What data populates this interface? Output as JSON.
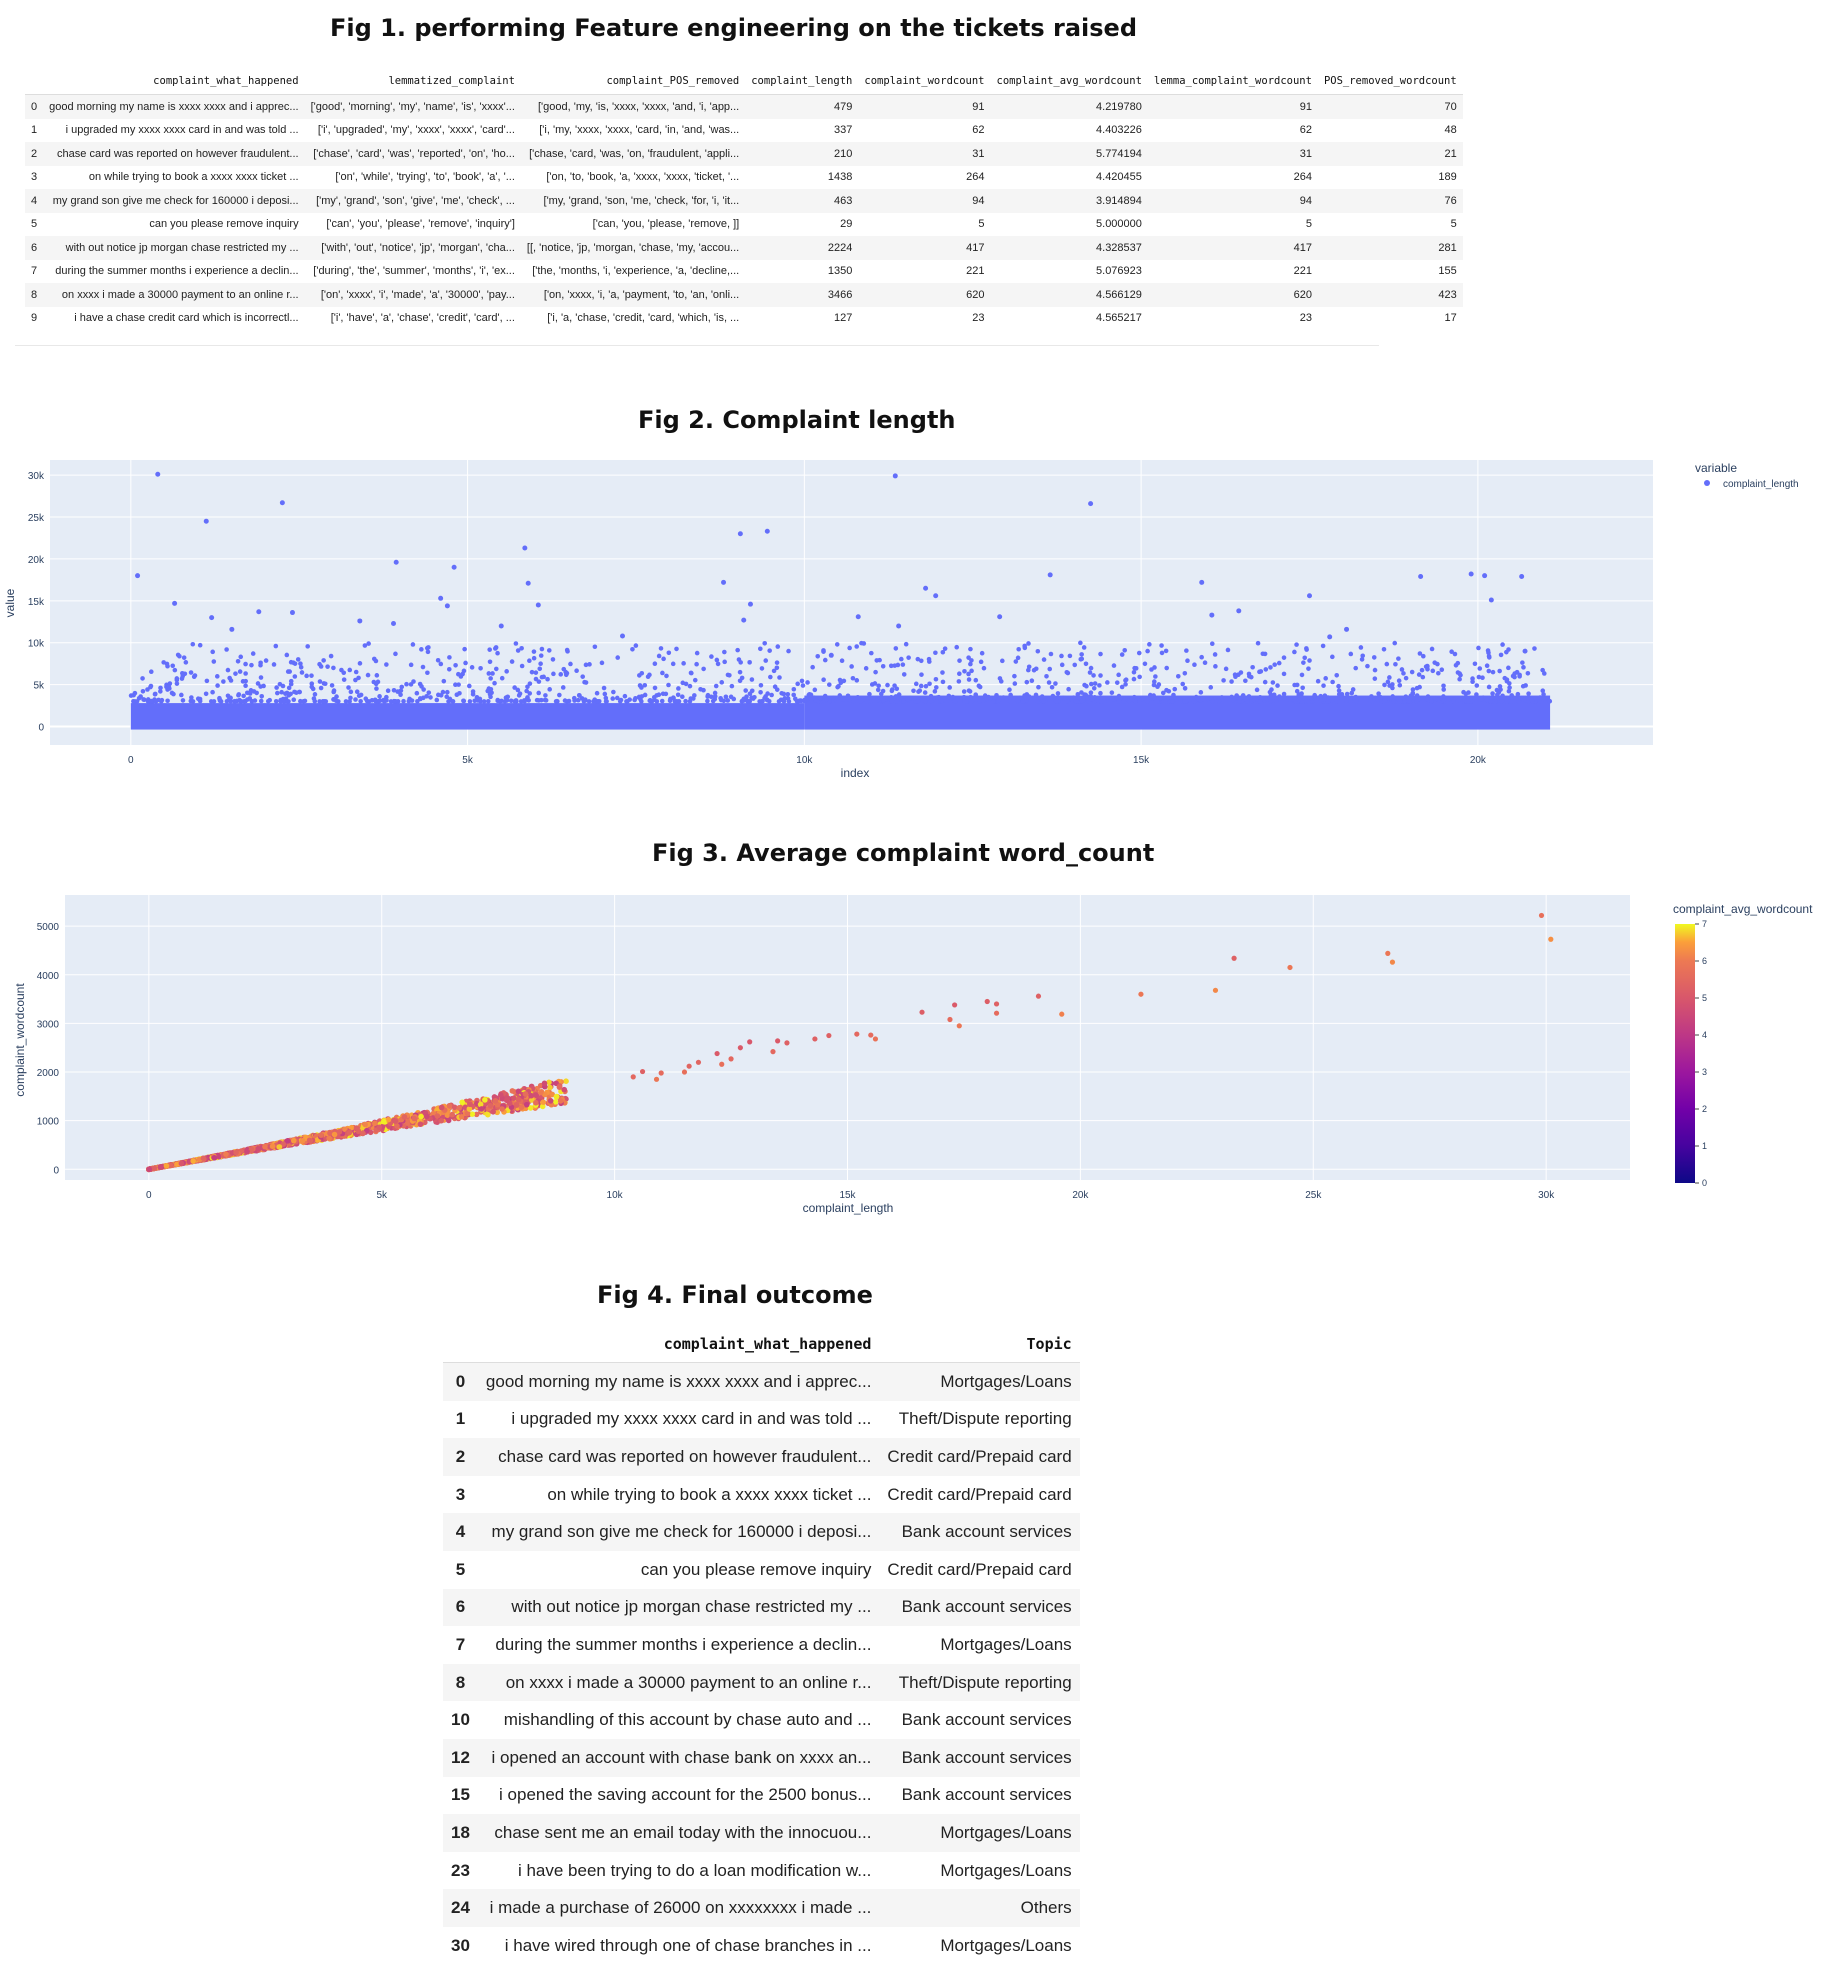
{
  "fig1": {
    "title": "Fig 1. performing Feature engineering on the tickets raised",
    "columns": [
      "",
      "complaint_what_happened",
      "lemmatized_complaint",
      "complaint_POS_removed",
      "complaint_length",
      "complaint_wordcount",
      "complaint_avg_wordcount",
      "lemma_complaint_wordcount",
      "POS_removed_wordcount"
    ],
    "rows": [
      [
        "0",
        "good morning my name is xxxx xxxx and i apprec...",
        "['good', 'morning', 'my', 'name', 'is', 'xxxx'...",
        "['good, 'my, 'is, 'xxxx, 'xxxx, 'and, 'i, 'app...",
        "479",
        "91",
        "4.219780",
        "91",
        "70"
      ],
      [
        "1",
        "i upgraded my xxxx xxxx card in and was told ...",
        "['i', 'upgraded', 'my', 'xxxx', 'xxxx', 'card'...",
        "['i, 'my, 'xxxx, 'xxxx, 'card, 'in, 'and, 'was...",
        "337",
        "62",
        "4.403226",
        "62",
        "48"
      ],
      [
        "2",
        "chase card was reported on however fraudulent...",
        "['chase', 'card', 'was', 'reported', 'on', 'ho...",
        "['chase, 'card, 'was, 'on, 'fraudulent, 'appli...",
        "210",
        "31",
        "5.774194",
        "31",
        "21"
      ],
      [
        "3",
        "on while trying to book a xxxx xxxx ticket ...",
        "['on', 'while', 'trying', 'to', 'book', 'a', '...",
        "['on, 'to, 'book, 'a, 'xxxx, 'xxxx, 'ticket, '...",
        "1438",
        "264",
        "4.420455",
        "264",
        "189"
      ],
      [
        "4",
        "my grand son give me check for 160000 i deposi...",
        "['my', 'grand', 'son', 'give', 'me', 'check', ...",
        "['my, 'grand, 'son, 'me, 'check, 'for, 'i, 'it...",
        "463",
        "94",
        "3.914894",
        "94",
        "76"
      ],
      [
        "5",
        "can you please remove inquiry",
        "['can', 'you', 'please', 'remove', 'inquiry']",
        "['can, 'you, 'please, 'remove, ]]",
        "29",
        "5",
        "5.000000",
        "5",
        "5"
      ],
      [
        "6",
        "with out notice jp morgan chase restricted my ...",
        "['with', 'out', 'notice', 'jp', 'morgan', 'cha...",
        "[[, 'notice, 'jp, 'morgan, 'chase, 'my, 'accou...",
        "2224",
        "417",
        "4.328537",
        "417",
        "281"
      ],
      [
        "7",
        "during the summer months i experience a declin...",
        "['during', 'the', 'summer', 'months', 'i', 'ex...",
        "['the, 'months, 'i, 'experience, 'a, 'decline,...",
        "1350",
        "221",
        "5.076923",
        "221",
        "155"
      ],
      [
        "8",
        "on xxxx i made a 30000 payment to an online r...",
        "['on', 'xxxx', 'i', 'made', 'a', '30000', 'pay...",
        "['on, 'xxxx, 'i, 'a, 'payment, 'to, 'an, 'onli...",
        "3466",
        "620",
        "4.566129",
        "620",
        "423"
      ],
      [
        "9",
        "i have a chase credit card which is incorrectl...",
        "['i', 'have', 'a', 'chase', 'credit', 'card', ...",
        "['i, 'a, 'chase, 'credit, 'card, 'which, 'is, ...",
        "127",
        "23",
        "4.565217",
        "23",
        "17"
      ]
    ]
  },
  "fig2": {
    "title": "Fig 2.  Complaint length",
    "xlabel": "index",
    "ylabel": "value",
    "legend_title": "variable",
    "legend_item": "complaint_length",
    "marker_color": "#636efa",
    "x_ticks": [
      {
        "v": 0,
        "label": "0"
      },
      {
        "v": 5000,
        "label": "5k"
      },
      {
        "v": 10000,
        "label": "10k"
      },
      {
        "v": 15000,
        "label": "15k"
      },
      {
        "v": 20000,
        "label": "20k"
      }
    ],
    "y_ticks": [
      {
        "v": 0,
        "label": "0"
      },
      {
        "v": 5000,
        "label": "5k"
      },
      {
        "v": 10000,
        "label": "10k"
      },
      {
        "v": 15000,
        "label": "15k"
      },
      {
        "v": 20000,
        "label": "20k"
      },
      {
        "v": 25000,
        "label": "25k"
      },
      {
        "v": 30000,
        "label": "30k"
      }
    ]
  },
  "fig3": {
    "title": "Fig 3. Average complaint word_count",
    "xlabel": "complaint_length",
    "ylabel": "complaint_wordcount",
    "colorbar_title": "complaint_avg_wordcount",
    "colorbar_ticks": [
      "0",
      "1",
      "2",
      "3",
      "4",
      "5",
      "6",
      "7"
    ],
    "x_ticks": [
      {
        "v": 0,
        "label": "0"
      },
      {
        "v": 5000,
        "label": "5k"
      },
      {
        "v": 10000,
        "label": "10k"
      },
      {
        "v": 15000,
        "label": "15k"
      },
      {
        "v": 20000,
        "label": "20k"
      },
      {
        "v": 25000,
        "label": "25k"
      },
      {
        "v": 30000,
        "label": "30k"
      }
    ],
    "y_ticks": [
      {
        "v": 0,
        "label": "0"
      },
      {
        "v": 1000,
        "label": "1000"
      },
      {
        "v": 2000,
        "label": "2000"
      },
      {
        "v": 3000,
        "label": "3000"
      },
      {
        "v": 4000,
        "label": "4000"
      },
      {
        "v": 5000,
        "label": "5000"
      }
    ]
  },
  "fig4": {
    "title": "Fig 4. Final outcome",
    "columns": [
      "",
      "complaint_what_happened",
      "Topic"
    ],
    "rows": [
      [
        "0",
        "good morning my name is xxxx xxxx and i apprec...",
        "Mortgages/Loans"
      ],
      [
        "1",
        "i upgraded my xxxx xxxx card in and was told ...",
        "Theft/Dispute reporting"
      ],
      [
        "2",
        "chase card was reported on however fraudulent...",
        "Credit card/Prepaid card"
      ],
      [
        "3",
        "on while trying to book a xxxx xxxx ticket ...",
        "Credit card/Prepaid card"
      ],
      [
        "4",
        "my grand son give me check for 160000 i deposi...",
        "Bank account services"
      ],
      [
        "5",
        "can you please remove inquiry",
        "Credit card/Prepaid card"
      ],
      [
        "6",
        "with out notice jp morgan chase restricted my ...",
        "Bank account services"
      ],
      [
        "7",
        "during the summer months i experience a declin...",
        "Mortgages/Loans"
      ],
      [
        "8",
        "on xxxx i made a 30000 payment to an online r...",
        "Theft/Dispute reporting"
      ],
      [
        "10",
        "mishandling of this account by chase auto and ...",
        "Bank account services"
      ],
      [
        "12",
        "i opened an account with chase bank on xxxx an...",
        "Bank account services"
      ],
      [
        "15",
        "i opened the saving account for the 2500 bonus...",
        "Bank account services"
      ],
      [
        "18",
        "chase sent me an email today with the innocuou...",
        "Mortgages/Loans"
      ],
      [
        "23",
        "i have been trying to do a loan modification w...",
        "Mortgages/Loans"
      ],
      [
        "24",
        "i made a purchase of 26000 on xxxxxxxx i made ...",
        "Others"
      ],
      [
        "30",
        "i have wired through one of chase branches in ...",
        "Mortgages/Loans"
      ]
    ]
  },
  "chart_data": [
    {
      "type": "scatter",
      "title": "Fig 2.  Complaint length",
      "xlabel": "index",
      "ylabel": "value",
      "xlim": [
        -1200,
        22600
      ],
      "ylim": [
        -2200,
        31800
      ],
      "grid": true,
      "legend": "top-right",
      "series": [
        {
          "name": "complaint_length",
          "dense_band": {
            "x_range": [
              0,
              21072
            ],
            "typical_max": 3500,
            "segments": [
              [
                0,
                10000,
                2800
              ],
              [
                10000,
                21072,
                3700
              ]
            ]
          },
          "outliers": [
            {
              "x": 100,
              "y": 18000
            },
            {
              "x": 400,
              "y": 30100
            },
            {
              "x": 650,
              "y": 14700
            },
            {
              "x": 1120,
              "y": 24500
            },
            {
              "x": 1200,
              "y": 13000
            },
            {
              "x": 2250,
              "y": 26700
            },
            {
              "x": 1900,
              "y": 13700
            },
            {
              "x": 2400,
              "y": 13600
            },
            {
              "x": 1500,
              "y": 11600
            },
            {
              "x": 3400,
              "y": 12600
            },
            {
              "x": 3900,
              "y": 12300
            },
            {
              "x": 3940,
              "y": 19600
            },
            {
              "x": 4600,
              "y": 15300
            },
            {
              "x": 4700,
              "y": 14400
            },
            {
              "x": 4800,
              "y": 19000
            },
            {
              "x": 5500,
              "y": 12000
            },
            {
              "x": 5850,
              "y": 21300
            },
            {
              "x": 5900,
              "y": 17100
            },
            {
              "x": 6050,
              "y": 14500
            },
            {
              "x": 7300,
              "y": 10800
            },
            {
              "x": 8800,
              "y": 17200
            },
            {
              "x": 9050,
              "y": 23000
            },
            {
              "x": 9100,
              "y": 12700
            },
            {
              "x": 9200,
              "y": 14600
            },
            {
              "x": 9450,
              "y": 23300
            },
            {
              "x": 10400,
              "y": 8500
            },
            {
              "x": 10800,
              "y": 13100
            },
            {
              "x": 11350,
              "y": 29900
            },
            {
              "x": 11400,
              "y": 12000
            },
            {
              "x": 11800,
              "y": 16500
            },
            {
              "x": 11950,
              "y": 15600
            },
            {
              "x": 12900,
              "y": 13100
            },
            {
              "x": 13650,
              "y": 18100
            },
            {
              "x": 14250,
              "y": 26600
            },
            {
              "x": 15900,
              "y": 17200
            },
            {
              "x": 16050,
              "y": 13300
            },
            {
              "x": 16450,
              "y": 13800
            },
            {
              "x": 17500,
              "y": 15600
            },
            {
              "x": 17800,
              "y": 10700
            },
            {
              "x": 18050,
              "y": 11600
            },
            {
              "x": 19150,
              "y": 17900
            },
            {
              "x": 19900,
              "y": 18200
            },
            {
              "x": 20100,
              "y": 18000
            },
            {
              "x": 20200,
              "y": 15100
            },
            {
              "x": 20650,
              "y": 17900
            },
            {
              "x": 20700,
              "y": 9000
            }
          ]
        }
      ]
    },
    {
      "type": "scatter",
      "title": "Fig 3. Average complaint word_count",
      "xlabel": "complaint_length",
      "ylabel": "complaint_wordcount",
      "xlim": [
        -1800,
        31800
      ],
      "ylim": [
        -220,
        5640
      ],
      "grid": true,
      "color_by": "complaint_avg_wordcount",
      "color_range": [
        0,
        7
      ],
      "trend": {
        "slope_words_per_char": 0.18,
        "color_value": 5.2
      },
      "outliers": [
        {
          "x": 29900,
          "y": 5220,
          "c": 5.7
        },
        {
          "x": 30100,
          "y": 4730,
          "c": 6.3
        },
        {
          "x": 26600,
          "y": 4440,
          "c": 5.9
        },
        {
          "x": 26700,
          "y": 4260,
          "c": 6.2
        },
        {
          "x": 23300,
          "y": 4340,
          "c": 5.3
        },
        {
          "x": 24500,
          "y": 4150,
          "c": 5.9
        },
        {
          "x": 22900,
          "y": 3680,
          "c": 6.2
        },
        {
          "x": 21300,
          "y": 3600,
          "c": 5.9
        },
        {
          "x": 19100,
          "y": 3560,
          "c": 5.3
        },
        {
          "x": 19600,
          "y": 3190,
          "c": 6.1
        },
        {
          "x": 18000,
          "y": 3450,
          "c": 5.2
        },
        {
          "x": 18200,
          "y": 3400,
          "c": 5.3
        },
        {
          "x": 18200,
          "y": 3210,
          "c": 5.6
        },
        {
          "x": 17300,
          "y": 3380,
          "c": 5.1
        },
        {
          "x": 17200,
          "y": 3080,
          "c": 5.6
        },
        {
          "x": 17400,
          "y": 2950,
          "c": 5.9
        },
        {
          "x": 16600,
          "y": 3230,
          "c": 5.2
        },
        {
          "x": 15500,
          "y": 2760,
          "c": 5.6
        },
        {
          "x": 15600,
          "y": 2680,
          "c": 5.8
        },
        {
          "x": 15200,
          "y": 2780,
          "c": 5.5
        },
        {
          "x": 14600,
          "y": 2750,
          "c": 5.3
        },
        {
          "x": 14300,
          "y": 2680,
          "c": 5.3
        },
        {
          "x": 13700,
          "y": 2600,
          "c": 5.3
        },
        {
          "x": 13500,
          "y": 2640,
          "c": 5.1
        },
        {
          "x": 13400,
          "y": 2420,
          "c": 5.5
        },
        {
          "x": 12900,
          "y": 2620,
          "c": 5.0
        },
        {
          "x": 12700,
          "y": 2500,
          "c": 5.1
        },
        {
          "x": 12200,
          "y": 2380,
          "c": 5.1
        },
        {
          "x": 12300,
          "y": 2160,
          "c": 5.7
        },
        {
          "x": 11800,
          "y": 2200,
          "c": 5.4
        },
        {
          "x": 11500,
          "y": 2000,
          "c": 5.7
        },
        {
          "x": 12500,
          "y": 2270,
          "c": 5.5
        },
        {
          "x": 11600,
          "y": 2120,
          "c": 5.4
        },
        {
          "x": 10400,
          "y": 1900,
          "c": 5.5
        },
        {
          "x": 10900,
          "y": 1850,
          "c": 5.9
        },
        {
          "x": 11000,
          "y": 1980,
          "c": 5.6
        },
        {
          "x": 10600,
          "y": 2010,
          "c": 5.3
        }
      ]
    }
  ]
}
